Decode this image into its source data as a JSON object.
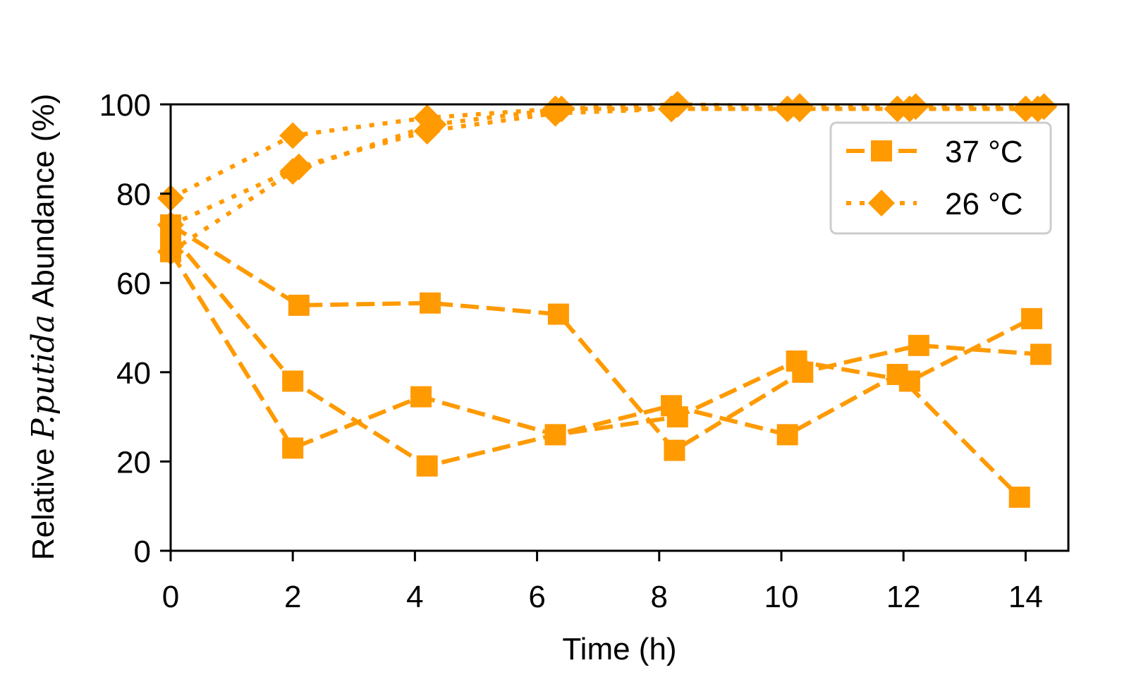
{
  "chart_data": {
    "type": "line",
    "title": "",
    "xlabel": "Time (h)",
    "ylabel_parts": [
      "Relative ",
      "P.putida",
      " Abundance (%)"
    ],
    "xlim": [
      0,
      14.7
    ],
    "ylim": [
      0,
      100
    ],
    "xticks": [
      0,
      2,
      4,
      6,
      8,
      10,
      12,
      14
    ],
    "yticks": [
      0,
      20,
      40,
      60,
      80,
      100
    ],
    "grid": false,
    "legend_position": "top-right",
    "color": "#ff9a00",
    "legend": [
      {
        "label": "37 °C",
        "style": "dashed",
        "marker": "square"
      },
      {
        "label": "26 °C",
        "style": "dotted",
        "marker": "diamond"
      }
    ],
    "series": [
      {
        "group": "37 °C",
        "style": "dashed",
        "marker": "square",
        "x": [
          0.0,
          2.1,
          4.25,
          6.35,
          8.25,
          10.35,
          12.25,
          14.25
        ],
        "y": [
          73,
          55,
          55.5,
          53,
          22.5,
          40,
          46,
          44
        ]
      },
      {
        "group": "37 °C",
        "style": "dashed",
        "marker": "square",
        "x": [
          0.0,
          2.0,
          4.2,
          6.3,
          8.3,
          10.25,
          12.1,
          14.1
        ],
        "y": [
          71,
          38,
          19,
          26,
          30,
          42.5,
          38,
          52
        ]
      },
      {
        "group": "37 °C",
        "style": "dashed",
        "marker": "square",
        "x": [
          0.0,
          2.0,
          4.1,
          6.3,
          8.2,
          10.1,
          11.9,
          13.9
        ],
        "y": [
          67,
          23,
          34.5,
          26,
          32.5,
          26,
          39.5,
          12
        ]
      },
      {
        "group": "26 °C",
        "style": "dotted",
        "marker": "diamond",
        "x": [
          0.0,
          2.0,
          4.2,
          6.3,
          8.2,
          10.1,
          12.1,
          14.2
        ],
        "y": [
          79,
          93,
          97,
          99,
          99,
          99,
          99,
          99
        ]
      },
      {
        "group": "26 °C",
        "style": "dotted",
        "marker": "diamond",
        "x": [
          0.0,
          2.1,
          4.2,
          6.3,
          8.2,
          10.3,
          11.9,
          14.0
        ],
        "y": [
          73,
          86,
          94,
          98,
          99,
          99,
          99,
          99
        ]
      },
      {
        "group": "26 °C",
        "style": "dotted",
        "marker": "diamond",
        "x": [
          0.0,
          2.0,
          4.3,
          6.4,
          8.3,
          10.3,
          12.2,
          14.3
        ],
        "y": [
          67,
          85,
          95.5,
          99,
          100,
          99.5,
          99.5,
          99.5
        ]
      }
    ]
  }
}
